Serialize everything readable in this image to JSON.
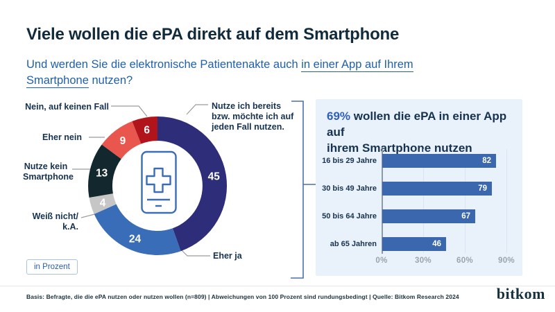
{
  "header": {
    "title": "Viele wollen die ePA direkt auf dem Smartphone",
    "subtitle": {
      "line1_normal": "Und werden Sie die elektronische Patientenakte auch ",
      "line1_underline": "in einer App auf Ihrem",
      "line2_underline": "Smartphone",
      "line2_normal": " nutzen?"
    }
  },
  "unit_badge": "in Prozent",
  "colors": {
    "accent_blue": "#3a67ae",
    "panel_background": "#e9f2fb",
    "headline_percent": "#2f5fb5",
    "dark_text": "#16324f"
  },
  "chart_data": [
    {
      "type": "pie",
      "subtype": "donut",
      "title": "Und werden Sie die elektronische Patientenakte auch in einer App auf Ihrem Smartphone nutzen?",
      "unit": "Prozent",
      "start_angle": "top, clockwise",
      "center_icon": "smartphone-medical-cross-icon",
      "segments": [
        {
          "label": "Nutze ich bereits bzw. möchte ich auf jeden Fall nutzen.",
          "value": 45,
          "color": "#2e2d7a"
        },
        {
          "label": "Eher ja",
          "value": 24,
          "color": "#3a6db8"
        },
        {
          "label": "Weiß nicht/ k.A.",
          "value": 4,
          "color": "#c6c6c6"
        },
        {
          "label": "Nutze kein Smartphone",
          "value": 13,
          "color": "#12282e"
        },
        {
          "label": "Eher nein",
          "value": 9,
          "color": "#e8564d"
        },
        {
          "label": "Nein, auf keinen Fall",
          "value": 6,
          "color": "#b2141c"
        }
      ]
    },
    {
      "type": "bar",
      "orientation": "horizontal",
      "headline_value": "69%",
      "headline_line1": " wollen die ePA in einer App auf",
      "headline_line2": "ihrem Smartphone nutzen",
      "title": "69% wollen die ePA in einer App auf ihrem Smartphone nutzen",
      "categories": [
        "16 bis 29 Jahre",
        "30 bis 49 Jahre",
        "50 bis 64 Jahre",
        "ab 65 Jahren"
      ],
      "values": [
        82,
        79,
        67,
        46
      ],
      "bar_color": "#3a67ae",
      "xlabel": "",
      "ylabel": "",
      "xlim": [
        0,
        95
      ],
      "xticks": [
        {
          "value": 0,
          "label": "0%"
        },
        {
          "value": 30,
          "label": "30%"
        },
        {
          "value": 60,
          "label": "60%"
        },
        {
          "value": 90,
          "label": "90%"
        }
      ],
      "grid": true,
      "legend": false
    }
  ],
  "footer": {
    "note": "Basis: Befragte, die die ePA nutzen oder nutzen wollen (n=809) | Abweichungen von 100 Prozent sind rundungsbedingt | Quelle: Bitkom Research 2024",
    "logo": "bitkom"
  }
}
